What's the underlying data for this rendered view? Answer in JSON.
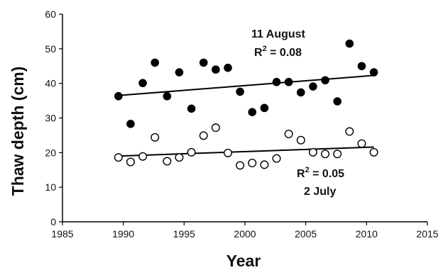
{
  "chart_data": {
    "type": "scatter",
    "xlabel": "Year",
    "ylabel": "Thaw depth (cm)",
    "xlim": [
      1985,
      2015
    ],
    "ylim": [
      0,
      60
    ],
    "xticks": [
      1985,
      1990,
      1995,
      2000,
      2005,
      2010,
      2015
    ],
    "yticks": [
      0,
      10,
      20,
      30,
      40,
      50,
      60
    ],
    "grid": false,
    "series": [
      {
        "marker": "filled-circle",
        "color": "#000000",
        "points": [
          [
            1989.6,
            36.3
          ],
          [
            1990.6,
            28.3
          ],
          [
            1991.6,
            40.1
          ],
          [
            1992.6,
            46.0
          ],
          [
            1993.6,
            36.3
          ],
          [
            1994.6,
            43.2
          ],
          [
            1995.6,
            32.7
          ],
          [
            1996.6,
            46.0
          ],
          [
            1997.6,
            44.0
          ],
          [
            1998.6,
            44.5
          ],
          [
            1999.6,
            37.6
          ],
          [
            2000.6,
            31.7
          ],
          [
            2001.6,
            32.9
          ],
          [
            2002.6,
            40.4
          ],
          [
            2003.6,
            40.4
          ],
          [
            2004.6,
            37.4
          ],
          [
            2005.6,
            39.1
          ],
          [
            2006.6,
            40.9
          ],
          [
            2007.6,
            34.8
          ],
          [
            2008.6,
            51.5
          ],
          [
            2009.6,
            45.0
          ],
          [
            2010.6,
            43.2
          ]
        ],
        "trendline": [
          [
            1989.6,
            36.5
          ],
          [
            2010.6,
            42.3
          ]
        ],
        "annotation": {
          "line1": "11 August",
          "r2_prefix": "R",
          "r2_sup": "2",
          "r2_suffix": " = 0.08"
        }
      },
      {
        "marker": "open-circle",
        "color": "#000000",
        "points": [
          [
            1989.6,
            18.6
          ],
          [
            1990.6,
            17.3
          ],
          [
            1991.6,
            18.9
          ],
          [
            1992.6,
            24.4
          ],
          [
            1993.6,
            17.5
          ],
          [
            1994.6,
            18.6
          ],
          [
            1995.6,
            20.1
          ],
          [
            1996.6,
            24.9
          ],
          [
            1997.6,
            27.2
          ],
          [
            1998.6,
            19.9
          ],
          [
            1999.6,
            16.3
          ],
          [
            2000.6,
            17.0
          ],
          [
            2001.6,
            16.5
          ],
          [
            2002.6,
            18.3
          ],
          [
            2003.6,
            25.4
          ],
          [
            2004.6,
            23.6
          ],
          [
            2005.6,
            20.1
          ],
          [
            2006.6,
            19.6
          ],
          [
            2007.6,
            19.6
          ],
          [
            2008.6,
            26.1
          ],
          [
            2009.6,
            22.6
          ],
          [
            2010.6,
            20.1
          ]
        ],
        "trendline": [
          [
            1989.6,
            19.0
          ],
          [
            2010.6,
            21.6
          ]
        ],
        "annotation": {
          "line1": "2 July",
          "r2_prefix": "R",
          "r2_sup": "2",
          "r2_suffix": " = 0.05"
        }
      }
    ]
  }
}
